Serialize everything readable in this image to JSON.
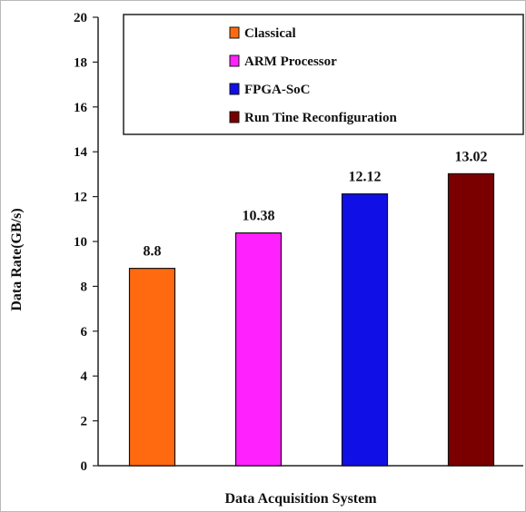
{
  "chart_data": {
    "type": "bar",
    "categories": [
      "Classical",
      "ARM Processor",
      "FPGA-SoC",
      "Run Time Reconfiguration"
    ],
    "values": [
      8.8,
      10.38,
      12.12,
      13.02
    ],
    "value_labels": [
      "8.8",
      "10.38",
      "12.12",
      "13.02"
    ],
    "colors": [
      "#ff6a10",
      "#ff22ff",
      "#1010e6",
      "#7a0000"
    ],
    "series": [
      {
        "name": "Classical",
        "color": "#ff6a10"
      },
      {
        "name": "ARM Processor",
        "color": "#ff22ff"
      },
      {
        "name": "FPGA-SoC",
        "color": "#1010e6"
      },
      {
        "name": "Run Tine Reconfiguration",
        "color": "#7a0000"
      }
    ],
    "xlabel": "Data Acquisition System",
    "ylabel": "Data Rate(GB/s)",
    "ylim": [
      0,
      20
    ],
    "yticks": [
      0,
      2,
      4,
      6,
      8,
      10,
      12,
      14,
      16,
      18,
      20
    ],
    "grid": false,
    "legend_position": "top-right"
  }
}
